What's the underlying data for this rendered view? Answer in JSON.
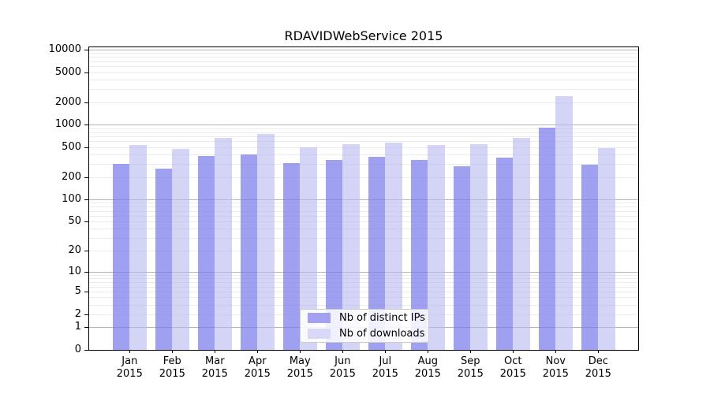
{
  "chart_data": {
    "type": "bar",
    "title": "RDAVIDWebService 2015",
    "months": [
      "Jan",
      "Feb",
      "Mar",
      "Apr",
      "May",
      "Jun",
      "Jul",
      "Aug",
      "Sep",
      "Oct",
      "Nov",
      "Dec"
    ],
    "year": "2015",
    "series": [
      {
        "name": "Nb of distinct IPs",
        "color": "#a2a2f0",
        "fill": "rgba(124,124,236,0.72)",
        "values": [
          300,
          260,
          385,
          400,
          310,
          340,
          370,
          340,
          280,
          360,
          910,
          290
        ]
      },
      {
        "name": "Nb of downloads",
        "color": "#d8d8f8",
        "fill": "rgba(183,183,242,0.60)",
        "values": [
          540,
          480,
          660,
          760,
          500,
          555,
          580,
          540,
          545,
          660,
          2400,
          490
        ]
      }
    ],
    "yscale": "log1p",
    "y_ticks": [
      0,
      1,
      2,
      5,
      10,
      20,
      50,
      100,
      200,
      500,
      1000,
      2000,
      5000,
      10000
    ],
    "ylim": [
      0,
      10000
    ],
    "xlabel": "",
    "ylabel": "",
    "grid": "horizontal major and log-minor gridlines",
    "legend_position": "lower center"
  },
  "colors": {
    "major_grid": "#b4b4b4",
    "minor_grid": "#ebebeb",
    "axis": "#000000",
    "background": "#ffffff"
  }
}
